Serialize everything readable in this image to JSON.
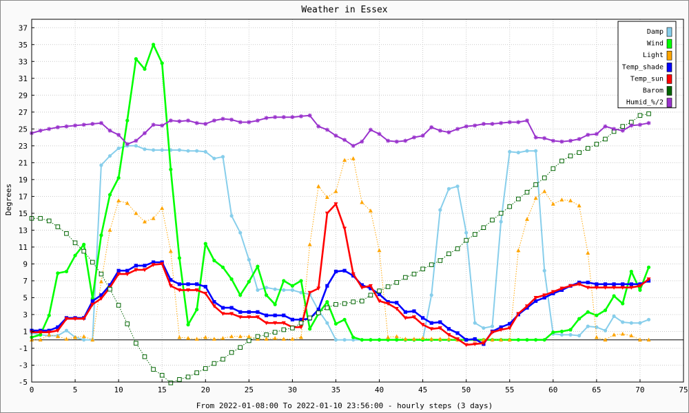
{
  "chart_data": {
    "type": "line",
    "title": "Weather in Essex",
    "xlabel": "From 2022-01-08:00 To 2022-01-10 23:56:00 - hourly steps (3 days)",
    "ylabel": "Degrees",
    "xlim": [
      0,
      75
    ],
    "ylim": [
      -5,
      38
    ],
    "x_ticks": [
      0,
      5,
      10,
      15,
      20,
      25,
      30,
      35,
      40,
      45,
      50,
      55,
      60,
      65,
      70,
      75
    ],
    "y_ticks": [
      -5,
      -3,
      -1,
      1,
      3,
      5,
      7,
      9,
      11,
      13,
      15,
      17,
      19,
      21,
      23,
      25,
      27,
      29,
      31,
      33,
      35,
      37
    ],
    "grid": true,
    "legend_position": "top-right",
    "series": [
      {
        "name": "Damp",
        "color": "#87ceeb",
        "marker": "dot",
        "line": "solid",
        "values": [
          0.8,
          0.6,
          0.5,
          0.5,
          1.1,
          0.3,
          0,
          0,
          20.7,
          21.8,
          22.7,
          23,
          23,
          22.6,
          22.5,
          22.5,
          22.5,
          22.5,
          22.4,
          22.4,
          22.3,
          21.5,
          21.7,
          14.7,
          12.7,
          9.5,
          5.9,
          6.2,
          6,
          5.9,
          5.9,
          5.6,
          5.4,
          3.5,
          2,
          0,
          0,
          0,
          0,
          0,
          0,
          0,
          0,
          0,
          0,
          0,
          5.3,
          15.4,
          17.9,
          18.2,
          12.7,
          2,
          1.4,
          1.6,
          14,
          22.3,
          22.2,
          22.4,
          22.4,
          8.2,
          0.7,
          0.6,
          0.6,
          0.5,
          1.6,
          1.5,
          1.1,
          2.8,
          2.1,
          2,
          2,
          2.4
        ]
      },
      {
        "name": "Wind",
        "color": "#00ff00",
        "marker": "dot",
        "line": "solid",
        "values": [
          0.3,
          0.6,
          2.9,
          7.9,
          8.1,
          10,
          11.3,
          4.9,
          12.4,
          17.2,
          19.2,
          26,
          33.3,
          32.1,
          35,
          32.8,
          20.2,
          9.7,
          1.8,
          3.6,
          11.4,
          9.4,
          8.6,
          7.2,
          5.3,
          6.9,
          8.7,
          5.3,
          4.2,
          7,
          6.4,
          7,
          1.3,
          3.1,
          4.5,
          1.9,
          2.4,
          0.3,
          0,
          0,
          0,
          0,
          0,
          0,
          0,
          0,
          0,
          0,
          0,
          0,
          0,
          0,
          0,
          0,
          0,
          0,
          0,
          0,
          0,
          0,
          0.9,
          1,
          1.2,
          2.5,
          3.3,
          2.9,
          3.5,
          5.2,
          4.3,
          8.1,
          5.9,
          8.6
        ]
      },
      {
        "name": "Light",
        "color": "#ffa500",
        "marker": "triangle",
        "line": "dotted",
        "values": [
          0,
          0,
          0.6,
          0.4,
          0.1,
          0.3,
          0.4,
          0,
          6.9,
          13,
          16.5,
          16.2,
          15,
          14,
          14.4,
          15.6,
          10.5,
          0.3,
          0.2,
          0.1,
          0.3,
          0.1,
          0.2,
          0.4,
          0.4,
          0.4,
          0.1,
          0.1,
          0.2,
          0.1,
          0.1,
          0.3,
          11.3,
          18.2,
          16.9,
          17.6,
          21.3,
          21.5,
          16.3,
          15.3,
          10.6,
          0.3,
          0.4,
          0.1,
          0.1,
          0.2,
          0.1,
          0.1,
          0.1,
          0,
          0,
          0,
          0,
          0,
          0,
          0,
          10.6,
          14.3,
          16.8,
          17.6,
          16.1,
          16.6,
          16.5,
          15.9,
          10.3,
          0.3,
          0,
          0.6,
          0.7,
          0.5,
          0,
          0
        ]
      },
      {
        "name": "Temp_shade",
        "color": "#0000ff",
        "marker": "square",
        "line": "solid",
        "values": [
          1.1,
          1.1,
          1.1,
          1.5,
          2.6,
          2.6,
          2.6,
          4.6,
          5.3,
          6.5,
          8.2,
          8.2,
          8.8,
          8.8,
          9.2,
          9.2,
          7.1,
          6.6,
          6.6,
          6.6,
          6.3,
          4.5,
          3.8,
          3.8,
          3.3,
          3.3,
          3.3,
          2.9,
          2.9,
          2.9,
          2.4,
          2.4,
          2.5,
          3.6,
          6.4,
          8.1,
          8.2,
          7.6,
          6.5,
          6.1,
          5.4,
          4.5,
          4.4,
          3.3,
          3.4,
          2.6,
          2,
          2.1,
          1.3,
          0.8,
          0,
          0.1,
          -0.5,
          1,
          1.5,
          1.9,
          3,
          3.8,
          4.6,
          5,
          5.5,
          5.9,
          6.4,
          6.8,
          6.8,
          6.6,
          6.6,
          6.6,
          6.6,
          6.6,
          6.6,
          7
        ]
      },
      {
        "name": "Temp_sun",
        "color": "#ff0000",
        "marker": "triangle-down",
        "line": "solid",
        "values": [
          0.9,
          0.9,
          0.9,
          1.1,
          2.5,
          2.5,
          2.5,
          4.2,
          4.9,
          6.2,
          7.8,
          7.8,
          8.3,
          8.3,
          8.9,
          9,
          6.4,
          5.9,
          5.9,
          5.9,
          5.5,
          4,
          3.1,
          3.1,
          2.7,
          2.7,
          2.7,
          2,
          2,
          2,
          1.5,
          1.5,
          5.6,
          6.1,
          15,
          16.1,
          13.2,
          7.8,
          6.2,
          6.4,
          4.6,
          4.3,
          3.7,
          2.6,
          2.7,
          1.8,
          1.3,
          1.4,
          0.6,
          0.1,
          -0.6,
          -0.5,
          -0.4,
          0.9,
          1.2,
          1.4,
          3.1,
          4,
          5,
          5.3,
          5.7,
          6.1,
          6.4,
          6.6,
          6.2,
          6.2,
          6.2,
          6.2,
          6.2,
          6.2,
          6.4,
          7.2
        ]
      },
      {
        "name": "Barom",
        "color": "#006400",
        "marker": "open-square",
        "line": "dotted",
        "values": [
          14.4,
          14.4,
          14.1,
          13.4,
          12.6,
          11.5,
          10.5,
          9.2,
          7.8,
          6,
          4.1,
          1.9,
          -0.4,
          -2,
          -3.5,
          -4.2,
          -5.1,
          -4.7,
          -4.4,
          -3.9,
          -3.4,
          -2.8,
          -2.3,
          -1.5,
          -0.9,
          -0.1,
          0.4,
          0.6,
          0.9,
          1.2,
          1.4,
          2,
          2.6,
          3.2,
          3.8,
          4.2,
          4.3,
          4.5,
          4.6,
          5.3,
          5.8,
          6.3,
          6.8,
          7.4,
          7.8,
          8.4,
          8.9,
          9.4,
          10.2,
          10.8,
          11.8,
          12.5,
          13.3,
          14.2,
          15,
          15.8,
          16.7,
          17.5,
          18.4,
          19.2,
          20.3,
          21.2,
          21.8,
          22.2,
          22.7,
          23.2,
          23.8,
          24.7,
          25.3,
          25.8,
          26.6,
          26.8
        ]
      },
      {
        "name": "Humid_%/2",
        "color": "#9932cc",
        "marker": "star",
        "line": "solid",
        "values": [
          24.5,
          24.8,
          25,
          25.2,
          25.3,
          25.4,
          25.5,
          25.6,
          25.7,
          24.8,
          24.3,
          23.2,
          23.6,
          24.5,
          25.5,
          25.4,
          26,
          25.9,
          26,
          25.7,
          25.6,
          26,
          26.2,
          26.1,
          25.8,
          25.8,
          26,
          26.3,
          26.4,
          26.4,
          26.4,
          26.5,
          26.6,
          25.3,
          24.9,
          24.2,
          23.7,
          23,
          23.5,
          24.9,
          24.4,
          23.6,
          23.5,
          23.6,
          24,
          24.2,
          25.2,
          24.8,
          24.6,
          25,
          25.3,
          25.4,
          25.6,
          25.6,
          25.7,
          25.8,
          25.8,
          26,
          24,
          23.9,
          23.6,
          23.5,
          23.6,
          23.8,
          24.3,
          24.4,
          25.3,
          25,
          24.8,
          25.4,
          25.5,
          25.7
        ]
      }
    ]
  }
}
